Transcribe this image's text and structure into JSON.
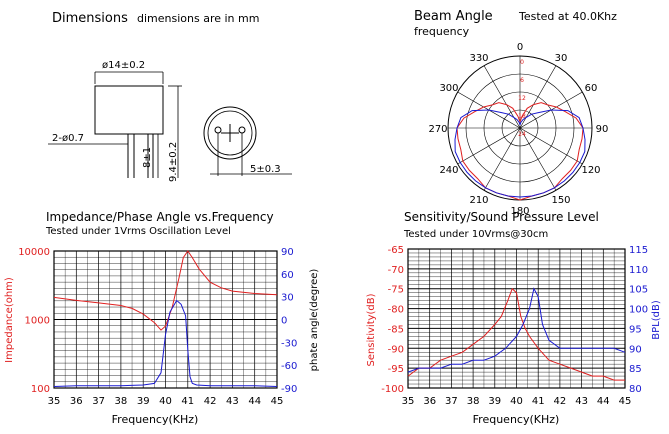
{
  "dimensions": {
    "title": "Dimensions",
    "note": "dimensions are in mm",
    "labels": {
      "diameter": "ø14±0.2",
      "pin_diameter": "2-ø0.7",
      "pin_length": "8±1",
      "height": "9.4±0.2",
      "pitch": "5±0.3"
    }
  },
  "beam": {
    "title": "Beam  Angle",
    "subtitle": "Tested at 40.0Khz",
    "subtitle2": "frequency",
    "angle_labels": [
      "0",
      "30",
      "60",
      "90",
      "120",
      "150",
      "180",
      "210",
      "240",
      "270",
      "300",
      "330"
    ],
    "ring_labels": [
      "0",
      "6",
      "12",
      "18",
      "24"
    ]
  },
  "colors": {
    "red": "#e02020",
    "blue": "#1a1ad0",
    "grid": "#000000"
  },
  "chart_data": [
    {
      "type": "line",
      "title": "Impedance/Phase Angle vs.Frequency",
      "subtitle": "Tested under 1Vrms Oscillation Level",
      "xlabel": "Frequency(KHz)",
      "ylabel_left": "Impedance(ohm)",
      "ylabel_right": "phate angle(degree)",
      "y_left_scale": "log",
      "ylim_left": [
        100,
        10000
      ],
      "yticks_left": [
        "10000",
        "1000",
        "100"
      ],
      "ylim_right": [
        -90,
        90
      ],
      "yticks_right": [
        "90",
        "60",
        "30",
        "0",
        "-30",
        "-60",
        "-90"
      ],
      "x_ticks": [
        "35",
        "36",
        "37",
        "38",
        "39",
        "40",
        "41",
        "42",
        "43",
        "44",
        "45"
      ],
      "xlim": [
        35,
        45
      ],
      "grid": true,
      "series": [
        {
          "axis": "left",
          "color": "#e02020",
          "x": [
            35,
            36,
            37,
            38,
            38.5,
            39,
            39.5,
            39.8,
            40.0,
            40.3,
            40.6,
            40.8,
            41.0,
            41.2,
            41.5,
            42,
            42.5,
            43,
            44,
            45
          ],
          "values": [
            2100,
            1900,
            1750,
            1600,
            1450,
            1200,
            900,
            700,
            800,
            1500,
            4000,
            8000,
            10000,
            8000,
            5500,
            3500,
            2900,
            2600,
            2400,
            2300
          ]
        },
        {
          "axis": "right",
          "color": "#1a1ad0",
          "x": [
            35,
            36,
            37,
            38,
            39,
            39.5,
            39.8,
            40.0,
            40.2,
            40.5,
            40.7,
            40.9,
            41.0,
            41.1,
            41.2,
            41.4,
            42,
            43,
            44,
            45
          ],
          "values": [
            -88,
            -87,
            -87,
            -87,
            -86,
            -84,
            -70,
            -20,
            10,
            25,
            20,
            5,
            -40,
            -75,
            -84,
            -86,
            -87,
            -87,
            -87,
            -88
          ]
        }
      ]
    },
    {
      "type": "line",
      "title": "Sensitivity/Sound Pressure Level",
      "subtitle": "Tested under 10Vrms@30cm",
      "xlabel": "Frequency(KHz)",
      "ylabel_left": "Sensitivity(dB)",
      "ylabel_right": "BPL(dB)",
      "ylim_left": [
        -100,
        -65
      ],
      "yticks_left": [
        "-65",
        "-70",
        "-75",
        "-80",
        "-85",
        "-90",
        "-95",
        "-100"
      ],
      "ylim_right": [
        80,
        115
      ],
      "yticks_right": [
        "115",
        "110",
        "105",
        "100",
        "95",
        "90",
        "85",
        "80"
      ],
      "x_ticks": [
        "35",
        "36",
        "37",
        "38",
        "39",
        "40",
        "41",
        "42",
        "43",
        "44",
        "45"
      ],
      "xlim": [
        35,
        45
      ],
      "grid": true,
      "series": [
        {
          "axis": "left",
          "color": "#e02020",
          "x": [
            35,
            35.5,
            36,
            36.5,
            37,
            37.5,
            38,
            38.5,
            39,
            39.3,
            39.6,
            39.8,
            40.0,
            40.2,
            40.4,
            40.6,
            41.0,
            41.5,
            42,
            42.5,
            43,
            43.5,
            44,
            44.5,
            45
          ],
          "values": [
            -97,
            -95,
            -95,
            -93,
            -92,
            -91,
            -89,
            -87,
            -84,
            -82,
            -78,
            -75,
            -76,
            -82,
            -85,
            -87,
            -90,
            -93,
            -94,
            -95,
            -96,
            -97,
            -97,
            -98,
            -98
          ]
        },
        {
          "axis": "right",
          "color": "#1a1ad0",
          "x": [
            35,
            35.5,
            36,
            36.5,
            37,
            37.5,
            38,
            38.5,
            39,
            39.5,
            40.0,
            40.3,
            40.6,
            40.8,
            41.0,
            41.2,
            41.5,
            42,
            42.5,
            43,
            43.5,
            44,
            44.5,
            45
          ],
          "values": [
            84,
            85,
            85,
            85,
            86,
            86,
            87,
            87,
            88,
            90,
            93,
            96,
            100,
            105,
            103,
            96,
            92,
            90,
            90,
            90,
            90,
            90,
            90,
            89
          ]
        }
      ]
    }
  ],
  "polar_data": {
    "type": "polar",
    "rlim": [
      0,
      24
    ],
    "series": [
      {
        "color": "#e02020",
        "angles": [
          0,
          10,
          20,
          30,
          40,
          50,
          60,
          70,
          80,
          90,
          100,
          110,
          120,
          130,
          140,
          150,
          160,
          170,
          180,
          190,
          200,
          210,
          220,
          230,
          240,
          250,
          260,
          270,
          280,
          290,
          300,
          310,
          320,
          330,
          340,
          350
        ],
        "values": [
          2,
          4,
          7,
          9,
          11,
          12,
          14,
          16,
          19,
          21,
          21,
          21,
          22,
          22,
          22,
          23,
          23,
          23,
          24,
          23,
          23,
          23,
          22,
          22,
          22,
          21,
          21,
          21,
          19,
          16,
          14,
          12,
          11,
          9,
          7,
          4
        ]
      },
      {
        "color": "#1a1ad0",
        "angles": [
          0,
          10,
          20,
          30,
          40,
          50,
          60,
          70,
          80,
          90,
          100,
          110,
          120,
          130,
          140,
          150,
          160,
          170,
          180,
          190,
          200,
          210,
          220,
          230,
          240,
          250,
          260,
          270,
          280,
          290,
          300,
          310,
          320,
          330,
          340,
          350
        ],
        "values": [
          1,
          2,
          3,
          4,
          6,
          8,
          12,
          17,
          20,
          21,
          22,
          23,
          23,
          23,
          23,
          23,
          23,
          23,
          23,
          23,
          23,
          23,
          23,
          23,
          23,
          23,
          22,
          21,
          20,
          17,
          12,
          8,
          6,
          4,
          3,
          2
        ]
      }
    ]
  }
}
